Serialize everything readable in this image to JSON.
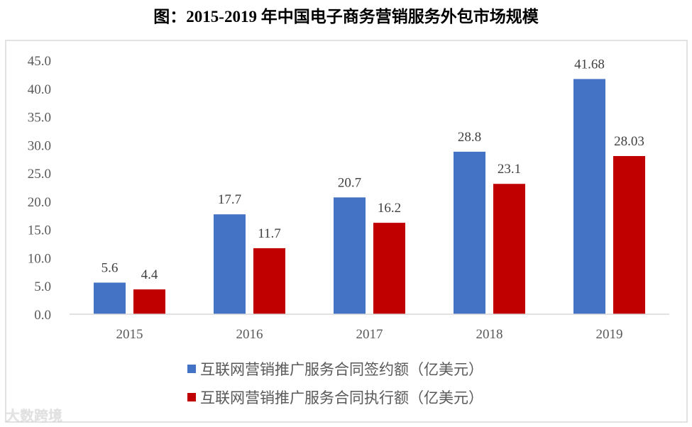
{
  "chart_data": {
    "type": "bar",
    "title": "图：2015-2019 年中国电子商务营销服务外包市场规模",
    "categories": [
      "2015",
      "2016",
      "2017",
      "2018",
      "2019"
    ],
    "series": [
      {
        "name": "互联网营销推广服务合同签约额（亿美元）",
        "color": "#4472C4",
        "values": [
          5.6,
          17.7,
          20.7,
          28.8,
          41.68
        ],
        "labels": [
          "5.6",
          "17.7",
          "20.7",
          "28.8",
          "41.68"
        ]
      },
      {
        "name": "互联网营销推广服务合同执行额（亿美元）",
        "color": "#C00000",
        "values": [
          4.4,
          11.7,
          16.2,
          23.1,
          28.03
        ],
        "labels": [
          "4.4",
          "11.7",
          "16.2",
          "23.1",
          "28.03"
        ]
      }
    ],
    "yticks": [
      "0.0",
      "5.0",
      "10.0",
      "15.0",
      "20.0",
      "25.0",
      "30.0",
      "35.0",
      "40.0",
      "45.0"
    ],
    "ylim": [
      0,
      45
    ],
    "grid": false,
    "legend_position": "bottom"
  },
  "watermark": "大数跨境"
}
